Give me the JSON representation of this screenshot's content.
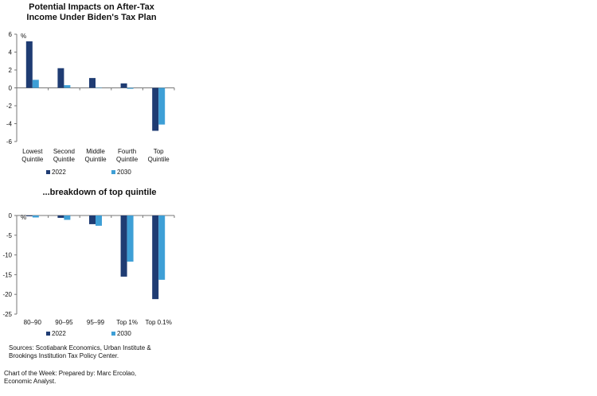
{
  "chart_data": [
    {
      "type": "bar",
      "title_line1": "Potential Impacts on After-Tax",
      "title_line2": "Income Under Biden's Tax Plan",
      "unit_label": "%",
      "categories": [
        [
          "Lowest",
          "Quintile"
        ],
        [
          "Second",
          "Quintile"
        ],
        [
          "Middle",
          "Quintile"
        ],
        [
          "Fourth",
          "Quintile"
        ],
        [
          "Top",
          "Quintile"
        ]
      ],
      "series": [
        {
          "name": "2022",
          "color": "#1f3c73",
          "values": [
            5.2,
            2.2,
            1.1,
            0.5,
            -4.8
          ]
        },
        {
          "name": "2030",
          "color": "#3e9fd6",
          "values": [
            0.9,
            0.3,
            0.0,
            -0.1,
            -4.1
          ]
        }
      ],
      "yticks": [
        "6",
        "4",
        "2",
        "0",
        "-2",
        "-4",
        "-6"
      ],
      "ylim": [
        -6,
        6
      ]
    },
    {
      "type": "bar",
      "title": "...breakdown of top quintile",
      "unit_label": "%",
      "categories": [
        [
          "80–90"
        ],
        [
          "90–95"
        ],
        [
          "95–99"
        ],
        [
          "Top 1%"
        ],
        [
          "Top 0.1%"
        ]
      ],
      "series": [
        {
          "name": "2022",
          "color": "#1f3c73",
          "values": [
            -0.2,
            -0.6,
            -2.2,
            -15.5,
            -21.2
          ]
        },
        {
          "name": "2030",
          "color": "#3e9fd6",
          "values": [
            -0.5,
            -1.1,
            -2.6,
            -11.7,
            -16.3
          ]
        }
      ],
      "yticks": [
        "0",
        "-5",
        "-10",
        "-15",
        "-20",
        "-25"
      ],
      "ylim": [
        -25,
        0
      ]
    }
  ],
  "footer": {
    "sources_line1": "Sources: Scotiabank Economics, Urban Institute &",
    "sources_line2": "Brookings Institution Tax Policy Center.",
    "credit_line1": "Chart of the Week:  Prepared by: Marc Ercolao,",
    "credit_line2": "Economic Analyst."
  }
}
